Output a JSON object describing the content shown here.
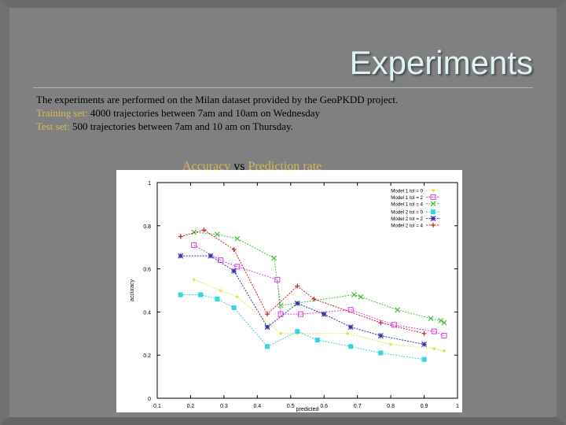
{
  "slide": {
    "title": "Experiments",
    "intro": "The experiments are performed on the Milan dataset provided by the GeoPKDD project.",
    "training_label": "Training set:",
    "training_text": " 4000 trajectories between 7am and 10am on Wednesday",
    "test_label": "Test set:",
    "test_text": " 500 trajectories between 7am and 10 am on Thursday.",
    "subtitle_a": "Accuracy",
    "subtitle_vs": " vs ",
    "subtitle_b": "Prediction rate",
    "accent_color": "#d9b65a",
    "title_color": "#dff2f5"
  },
  "chart_data": {
    "type": "line",
    "xlabel": "predicted",
    "ylabel": "accuracy",
    "xlim": [
      0.1,
      1
    ],
    "ylim": [
      0,
      1
    ],
    "xticks": [
      "0.1",
      "0.2",
      "0.3",
      "0.4",
      "0.5",
      "0.6",
      "0.7",
      "0.8",
      "0.9",
      "1"
    ],
    "yticks": [
      "0",
      "0.2",
      "0.4",
      "0.6",
      "0.8",
      "1"
    ],
    "legend_position": "top-right",
    "grid": false,
    "series": [
      {
        "name": "Model 1 tol = 0",
        "color": "#e6e64c",
        "marker": "dot",
        "points": [
          [
            0.21,
            0.55
          ],
          [
            0.29,
            0.5
          ],
          [
            0.34,
            0.47
          ],
          [
            0.47,
            0.3
          ],
          [
            0.52,
            0.3
          ],
          [
            0.67,
            0.3
          ],
          [
            0.8,
            0.25
          ],
          [
            0.93,
            0.23
          ],
          [
            0.96,
            0.22
          ]
        ]
      },
      {
        "name": "Model 1 tol = 2",
        "color": "#e23ce2",
        "marker": "square",
        "points": [
          [
            0.21,
            0.71
          ],
          [
            0.29,
            0.64
          ],
          [
            0.34,
            0.61
          ],
          [
            0.46,
            0.55
          ],
          [
            0.47,
            0.39
          ],
          [
            0.53,
            0.39
          ],
          [
            0.68,
            0.41
          ],
          [
            0.81,
            0.34
          ],
          [
            0.93,
            0.31
          ],
          [
            0.96,
            0.29
          ]
        ]
      },
      {
        "name": "Model 1 tol = 4",
        "color": "#42bf42",
        "marker": "x",
        "points": [
          [
            0.21,
            0.77
          ],
          [
            0.28,
            0.76
          ],
          [
            0.34,
            0.74
          ],
          [
            0.45,
            0.65
          ],
          [
            0.47,
            0.43
          ],
          [
            0.69,
            0.48
          ],
          [
            0.71,
            0.47
          ],
          [
            0.82,
            0.41
          ],
          [
            0.92,
            0.37
          ],
          [
            0.95,
            0.36
          ],
          [
            0.96,
            0.35
          ]
        ]
      },
      {
        "name": "Model 2 tol = 0",
        "color": "#32d6e0",
        "marker": "filled-square",
        "points": [
          [
            0.17,
            0.48
          ],
          [
            0.23,
            0.48
          ],
          [
            0.28,
            0.46
          ],
          [
            0.33,
            0.42
          ],
          [
            0.43,
            0.24
          ],
          [
            0.52,
            0.31
          ],
          [
            0.58,
            0.27
          ],
          [
            0.68,
            0.24
          ],
          [
            0.77,
            0.21
          ],
          [
            0.9,
            0.18
          ]
        ]
      },
      {
        "name": "Model 2 tol = 2",
        "color": "#3232a8",
        "marker": "star",
        "points": [
          [
            0.17,
            0.66
          ],
          [
            0.26,
            0.66
          ],
          [
            0.33,
            0.59
          ],
          [
            0.43,
            0.33
          ],
          [
            0.52,
            0.44
          ],
          [
            0.6,
            0.39
          ],
          [
            0.68,
            0.33
          ],
          [
            0.77,
            0.29
          ],
          [
            0.9,
            0.25
          ]
        ]
      },
      {
        "name": "Model 2 tol = 4",
        "color": "#cc2020",
        "marker": "plus",
        "points": [
          [
            0.17,
            0.75
          ],
          [
            0.24,
            0.78
          ],
          [
            0.33,
            0.69
          ],
          [
            0.43,
            0.39
          ],
          [
            0.52,
            0.52
          ],
          [
            0.57,
            0.46
          ],
          [
            0.77,
            0.35
          ],
          [
            0.9,
            0.3
          ]
        ]
      }
    ]
  }
}
